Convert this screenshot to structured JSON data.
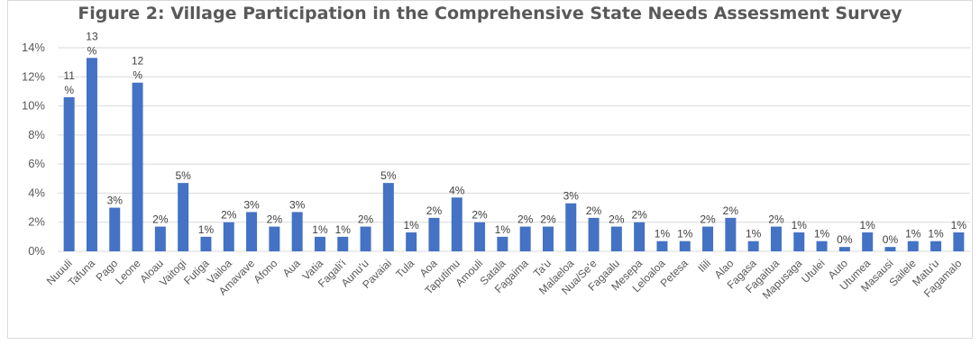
{
  "chart_data": {
    "type": "bar",
    "title": "Figure 2: Village Participation in the Comprehensive State Needs Assessment Survey",
    "xlabel": "",
    "ylabel": "",
    "ylim": [
      0,
      14
    ],
    "yticks": [
      "0%",
      "2%",
      "4%",
      "6%",
      "8%",
      "10%",
      "12%",
      "14%"
    ],
    "grid": true,
    "legend": "none",
    "bar_color": "#4472C4",
    "categories": [
      "Nuuuli",
      "Tafuna",
      "Pago",
      "Leone",
      "Aloau",
      "Vaitogi",
      "Futiga",
      "Vailoa",
      "Amavave",
      "Afono",
      "Aua",
      "Vatia",
      "Fagali'i",
      "Aunu'u",
      "Pavaiai",
      "Tula",
      "Aoa",
      "Taputimu",
      "Amouli",
      "Satala",
      "Fagaima",
      "Ta'u",
      "Malaeloa",
      "Nua/Se'e",
      "Fagaalu",
      "Mesepa",
      "Leloaloa",
      "Petesa",
      "Ilili",
      "Alao",
      "Fagasa",
      "Fagaitua",
      "Mapusaga",
      "Utulei",
      "Auto",
      "Utumea",
      "Masausi",
      "Sailele",
      "Matu'u",
      "Fagamalo"
    ],
    "values": [
      10.6,
      13.3,
      3.0,
      11.6,
      1.7,
      4.7,
      1.0,
      2.0,
      2.7,
      1.7,
      2.7,
      1.0,
      1.0,
      1.7,
      4.7,
      1.3,
      2.3,
      3.7,
      2.0,
      1.0,
      1.7,
      1.7,
      3.3,
      2.3,
      1.7,
      2.0,
      0.7,
      0.7,
      1.7,
      2.3,
      0.7,
      1.7,
      1.3,
      0.7,
      0.3,
      1.3,
      0.3,
      0.7,
      0.7,
      1.3
    ],
    "data_labels": [
      "11 %",
      "13 %",
      "3%",
      "12 %",
      "2%",
      "5%",
      "1%",
      "2%",
      "3%",
      "2%",
      "3%",
      "1%",
      "1%",
      "2%",
      "5%",
      "1%",
      "2%",
      "4%",
      "2%",
      "1%",
      "2%",
      "2%",
      "3%",
      "2%",
      "2%",
      "2%",
      "1%",
      "1%",
      "2%",
      "2%",
      "1%",
      "2%",
      "1%",
      "1%",
      "0%",
      "1%",
      "0%",
      "1%",
      "1%",
      "1%"
    ]
  }
}
